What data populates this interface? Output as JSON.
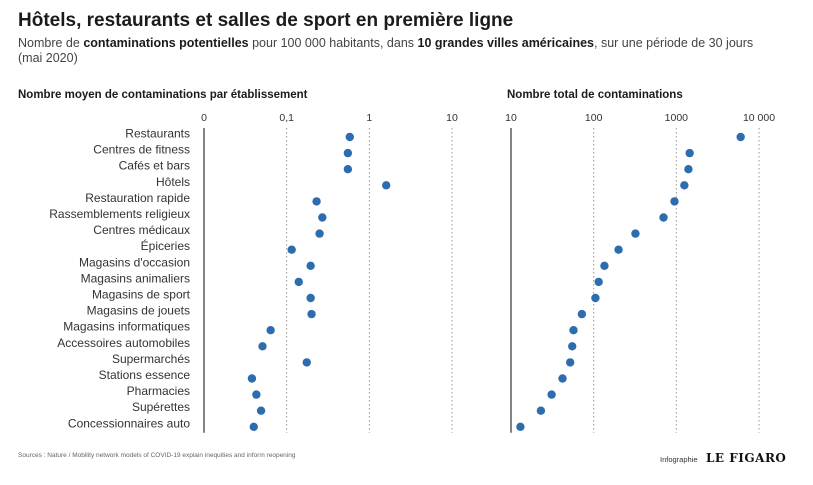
{
  "header": {
    "title": "Hôtels, restaurants et salles de sport en première ligne",
    "subtitle_parts": [
      {
        "text": "Nombre de ",
        "bold": false
      },
      {
        "text": "contaminations potentielles",
        "bold": true
      },
      {
        "text": " pour 100 000 habitants, dans ",
        "bold": false
      },
      {
        "text": "10 grandes villes américaines",
        "bold": true
      },
      {
        "text": ", sur une période de 30 jours (mai 2020)",
        "bold": false
      }
    ]
  },
  "footer": {
    "sources": "Sources : Nature  / Mobility network models of COVID-19 explain inequities and inform reopening",
    "credit_label": "Infographie",
    "brand": "LE FIGARO"
  },
  "colors": {
    "dot": "#2e6dad",
    "axis": "#333333",
    "grid": "#9a9a9a"
  },
  "chart_data": [
    {
      "type": "scatter",
      "title": "Nombre moyen de contaminations par établissement",
      "xscale": "log",
      "xlim": [
        0.01,
        10
      ],
      "xticks": [
        {
          "value": 0.01,
          "label": "0"
        },
        {
          "value": 0.1,
          "label": "0,1"
        },
        {
          "value": 1,
          "label": "1"
        },
        {
          "value": 10,
          "label": "10"
        }
      ],
      "grid": "vertical dotted",
      "categories": [
        "Restaurants",
        "Centres de fitness",
        "Cafés et bars",
        "Hôtels",
        "Restauration rapide",
        "Rassemblements religieux",
        "Centres médicaux",
        "Épiceries",
        "Magasins d'occasion",
        "Magasins animaliers",
        "Magasins de sport",
        "Magasins de jouets",
        "Magasins informatiques",
        "Accessoires automobiles",
        "Supermarchés",
        "Stations essence",
        "Pharmacies",
        "Supérettes",
        "Concessionnaires auto"
      ],
      "values": [
        0.58,
        0.55,
        0.55,
        1.6,
        0.23,
        0.27,
        0.25,
        0.115,
        0.195,
        0.14,
        0.195,
        0.2,
        0.064,
        0.051,
        0.175,
        0.038,
        0.043,
        0.049,
        0.04
      ]
    },
    {
      "type": "scatter",
      "title": "Nombre total de contaminations",
      "xscale": "log",
      "xlim": [
        10,
        10000
      ],
      "xticks": [
        {
          "value": 10,
          "label": "10"
        },
        {
          "value": 100,
          "label": "100"
        },
        {
          "value": 1000,
          "label": "1000"
        },
        {
          "value": 10000,
          "label": "10 000"
        }
      ],
      "grid": "vertical dotted",
      "categories": [
        "Restaurants",
        "Centres de fitness",
        "Cafés et bars",
        "Hôtels",
        "Restauration rapide",
        "Rassemblements religieux",
        "Centres médicaux",
        "Épiceries",
        "Magasins d'occasion",
        "Magasins animaliers",
        "Magasins de sport",
        "Magasins de jouets",
        "Magasins informatiques",
        "Accessoires automobiles",
        "Supermarchés",
        "Stations essence",
        "Pharmacies",
        "Supérettes",
        "Concessionnaires auto"
      ],
      "values": [
        6000,
        1450,
        1400,
        1250,
        950,
        700,
        320,
        200,
        135,
        115,
        105,
        72,
        57,
        55,
        52,
        42,
        31,
        23,
        13
      ]
    }
  ]
}
